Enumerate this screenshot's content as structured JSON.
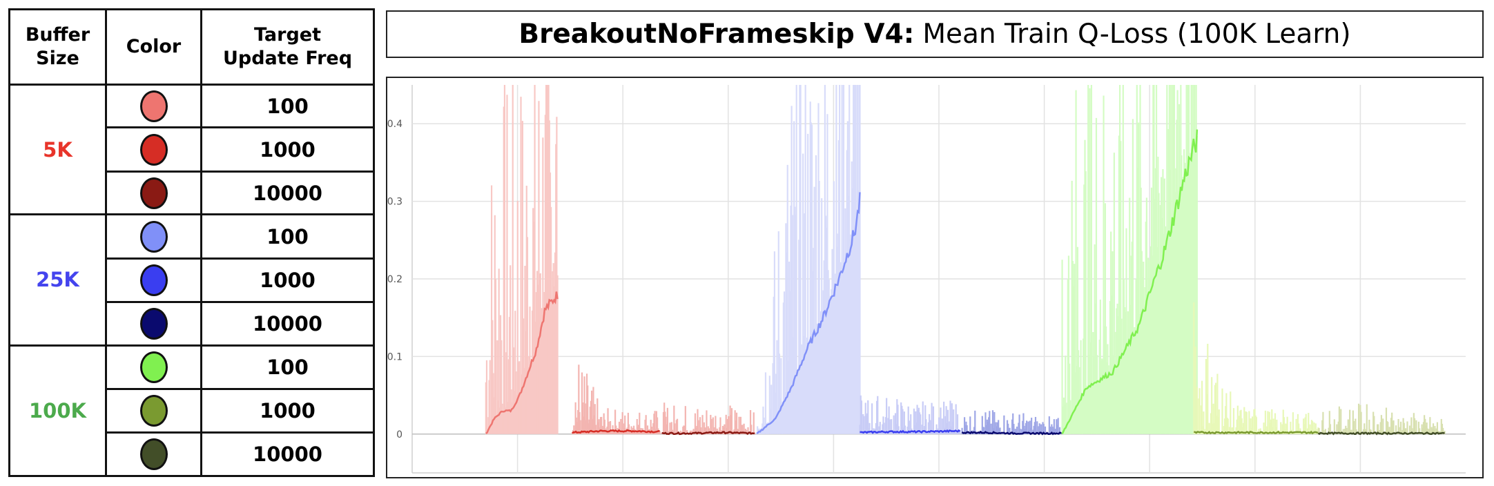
{
  "legend": {
    "headers": {
      "buffer": "Buffer\nSize",
      "color": "Color",
      "freq": "Target\nUpdate Freq"
    },
    "groups": [
      {
        "buffer": "5K",
        "color": "#e8342a",
        "rows": [
          {
            "swatch": "#ee7570",
            "freq": "100"
          },
          {
            "swatch": "#d62d25",
            "freq": "1000"
          },
          {
            "swatch": "#8a1a14",
            "freq": "10000"
          }
        ]
      },
      {
        "buffer": "25K",
        "color": "#4444ee",
        "rows": [
          {
            "swatch": "#8090f8",
            "freq": "100"
          },
          {
            "swatch": "#3a3ef0",
            "freq": "1000"
          },
          {
            "swatch": "#0a0a6e",
            "freq": "10000"
          }
        ]
      },
      {
        "buffer": "100K",
        "color": "#4caa4c",
        "rows": [
          {
            "swatch": "#80f050",
            "freq": "100"
          },
          {
            "swatch": "#7a9a30",
            "freq": "1000"
          },
          {
            "swatch": "#424e28",
            "freq": "10000"
          }
        ]
      }
    ]
  },
  "title": {
    "bold": "BreakoutNoFrameskip V4:",
    "rest": "Mean Train Q-Loss (100K Learn)"
  },
  "chart_data": {
    "type": "line",
    "title": "BreakoutNoFrameskip V4: Mean Train Q-Loss (100K Learn)",
    "xlabel": "",
    "ylabel": "",
    "ylim": [
      -0.05,
      0.45
    ],
    "xlim": [
      0,
      1000
    ],
    "yticks": [
      "0",
      "0.1",
      "0.2",
      "0.3",
      "0.4"
    ],
    "ytick_values": [
      0,
      0.1,
      0.2,
      0.3,
      0.4
    ],
    "xgrid": [
      100,
      200,
      300,
      400,
      500,
      600,
      700,
      800,
      900
    ],
    "grid": true,
    "legend": "none",
    "series": [
      {
        "color": "#ee7570",
        "raw_color": "#f8c8c5",
        "x": [
          70,
          78,
          86,
          94,
          102,
          110,
          118,
          126,
          138
        ],
        "y": [
          0,
          0.02,
          0.03,
          0.03,
          0.05,
          0.08,
          0.11,
          0.16,
          0.18
        ],
        "spread": [
          0.32,
          0.45,
          0.45,
          0.45,
          0.45,
          0.45,
          0.45,
          0.45,
          0.45
        ]
      },
      {
        "color": "#d62d25",
        "raw_color": "#f3b5b1",
        "x": [
          152,
          180,
          210,
          235
        ],
        "y": [
          0.002,
          0.004,
          0.004,
          0.003
        ],
        "spread": [
          0.13,
          0.03,
          0.03,
          0.03
        ]
      },
      {
        "color": "#8a1a14",
        "raw_color": "#f3b5b1",
        "x": [
          237,
          265,
          295,
          325
        ],
        "y": [
          0.001,
          0.001,
          0.002,
          0.001
        ],
        "spread": [
          0.04,
          0.04,
          0.04,
          0.03
        ]
      },
      {
        "color": "#8090f8",
        "raw_color": "#d8dcfa",
        "x": [
          327,
          345,
          360,
          375,
          390,
          405,
          420,
          425
        ],
        "y": [
          0,
          0.02,
          0.06,
          0.11,
          0.15,
          0.2,
          0.26,
          0.3
        ],
        "spread": [
          0.08,
          0.25,
          0.45,
          0.45,
          0.45,
          0.45,
          0.45,
          0.45
        ]
      },
      {
        "color": "#3a3ef0",
        "raw_color": "#c8ccf6",
        "x": [
          425,
          450,
          480,
          520
        ],
        "y": [
          0.002,
          0.003,
          0.003,
          0.004
        ],
        "spread": [
          0.05,
          0.05,
          0.04,
          0.04
        ]
      },
      {
        "color": "#0a0a6e",
        "raw_color": "#9ea6e6",
        "x": [
          522,
          545,
          570,
          617
        ],
        "y": [
          0.002,
          0.002,
          0.001,
          0.001
        ],
        "spread": [
          0.03,
          0.03,
          0.03,
          0.02
        ]
      },
      {
        "color": "#80f050",
        "raw_color": "#d4fcc4",
        "x": [
          617,
          640,
          665,
          690,
          715,
          735,
          745
        ],
        "y": [
          0,
          0.06,
          0.08,
          0.14,
          0.24,
          0.34,
          0.38
        ],
        "spread": [
          0.45,
          0.45,
          0.45,
          0.45,
          0.45,
          0.45,
          0.45
        ]
      },
      {
        "color": "#7a9a30",
        "raw_color": "#e8f8b8",
        "x": [
          742,
          780,
          820,
          860
        ],
        "y": [
          0.002,
          0.002,
          0.002,
          0.002
        ],
        "spread": [
          0.19,
          0.04,
          0.03,
          0.03
        ]
      },
      {
        "color": "#424e28",
        "raw_color": "#d8e0b0",
        "x": [
          860,
          900,
          940,
          980
        ],
        "y": [
          0.001,
          0.001,
          0.001,
          0.001
        ],
        "spread": [
          0.03,
          0.04,
          0.03,
          0.02
        ]
      }
    ]
  }
}
